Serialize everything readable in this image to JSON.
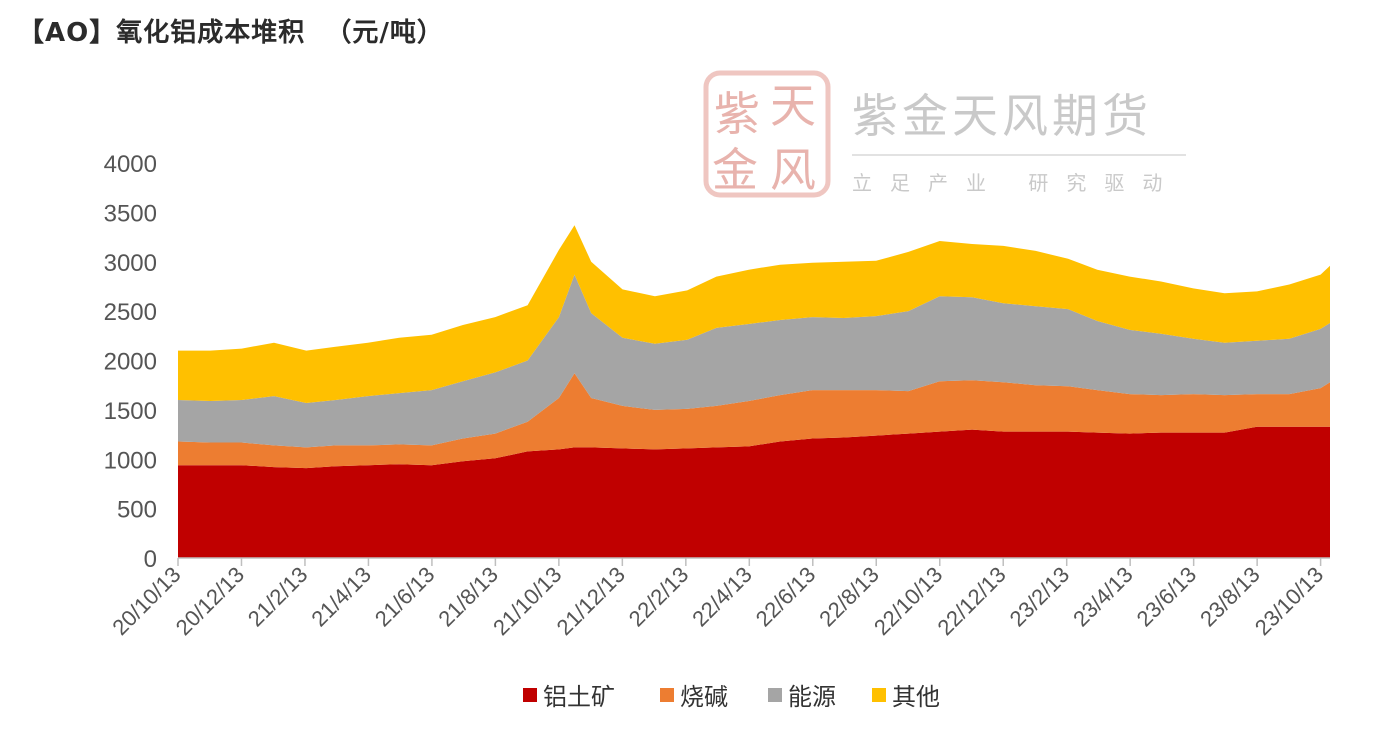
{
  "chart_title": "【AO】氧化铝成本堆积  （元/吨）",
  "watermark": {
    "seal_chars": [
      "紫",
      "天",
      "金",
      "风"
    ],
    "brand": "紫金天风期货",
    "slogan": "立足产业 研究驱动"
  },
  "chart_data": {
    "type": "area",
    "stacked": true,
    "title": "【AO】氧化铝成本堆积  （元/吨）",
    "xlabel": "",
    "ylabel": "",
    "ylim": [
      0,
      4000
    ],
    "yticks": [
      0,
      500,
      1000,
      1500,
      2000,
      2500,
      3000,
      3500,
      4000
    ],
    "grid": false,
    "legend_position": "bottom",
    "x_ticks": [
      "20/10/13",
      "20/12/13",
      "21/2/13",
      "21/4/13",
      "21/6/13",
      "21/8/13",
      "21/10/13",
      "21/12/13",
      "22/2/13",
      "22/4/13",
      "22/6/13",
      "22/8/13",
      "22/10/13",
      "22/12/13",
      "23/2/13",
      "23/4/13",
      "23/6/13",
      "23/8/13",
      "23/10/13"
    ],
    "x": [
      "2020-10-13",
      "2020-11-13",
      "2020-12-13",
      "2021-01-13",
      "2021-02-13",
      "2021-03-13",
      "2021-04-13",
      "2021-05-13",
      "2021-06-13",
      "2021-07-13",
      "2021-08-13",
      "2021-09-13",
      "2021-10-13",
      "2021-10-28",
      "2021-11-13",
      "2021-12-13",
      "2022-01-13",
      "2022-02-13",
      "2022-03-13",
      "2022-04-13",
      "2022-05-13",
      "2022-06-13",
      "2022-07-13",
      "2022-08-13",
      "2022-09-13",
      "2022-10-13",
      "2022-11-13",
      "2022-12-13",
      "2023-01-13",
      "2023-02-13",
      "2023-03-13",
      "2023-04-13",
      "2023-05-13",
      "2023-06-13",
      "2023-07-13",
      "2023-08-13",
      "2023-09-13",
      "2023-10-13",
      "2023-10-22"
    ],
    "series": [
      {
        "name": "铝土矿",
        "color": "#c00000",
        "values": [
          940,
          940,
          940,
          920,
          910,
          930,
          940,
          950,
          940,
          980,
          1010,
          1080,
          1100,
          1120,
          1120,
          1110,
          1100,
          1110,
          1120,
          1130,
          1180,
          1210,
          1220,
          1240,
          1260,
          1280,
          1300,
          1280,
          1280,
          1280,
          1270,
          1260,
          1270,
          1270,
          1270,
          1330,
          1330,
          1330,
          1330
        ]
      },
      {
        "name": "烧碱",
        "color": "#ed7d31",
        "values": [
          240,
          230,
          230,
          220,
          210,
          210,
          200,
          200,
          200,
          230,
          250,
          300,
          520,
          750,
          500,
          430,
          400,
          400,
          420,
          460,
          470,
          490,
          480,
          460,
          430,
          510,
          500,
          500,
          470,
          460,
          430,
          400,
          380,
          390,
          380,
          330,
          330,
          390,
          450
        ]
      },
      {
        "name": "能源",
        "color": "#a5a5a5",
        "values": [
          420,
          420,
          430,
          500,
          450,
          460,
          500,
          520,
          560,
          580,
          620,
          620,
          820,
          1000,
          860,
          690,
          670,
          700,
          790,
          780,
          760,
          740,
          730,
          750,
          810,
          860,
          840,
          800,
          800,
          780,
          700,
          650,
          620,
          560,
          530,
          540,
          560,
          600,
          600
        ]
      },
      {
        "name": "其他",
        "color": "#ffc000",
        "values": [
          500,
          510,
          520,
          540,
          530,
          540,
          540,
          560,
          560,
          570,
          560,
          560,
          680,
          500,
          520,
          490,
          480,
          500,
          520,
          550,
          560,
          550,
          570,
          560,
          600,
          560,
          540,
          580,
          560,
          510,
          520,
          540,
          530,
          510,
          500,
          500,
          550,
          550,
          580
        ]
      }
    ]
  }
}
